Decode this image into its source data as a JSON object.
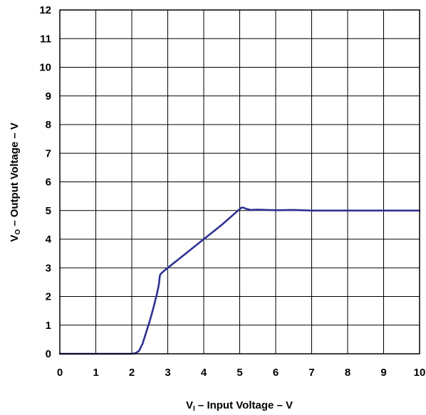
{
  "chart_data": {
    "type": "line",
    "title": "",
    "xlabel": {
      "main": "V",
      "sub": "I",
      "rest": " – Input Voltage – V"
    },
    "ylabel": {
      "main": "V",
      "sub": "O",
      "rest": " – Output Voltage – V"
    },
    "xlim": [
      0,
      10
    ],
    "ylim": [
      0,
      12
    ],
    "x_ticks": [
      "0",
      "1",
      "2",
      "3",
      "4",
      "5",
      "6",
      "7",
      "8",
      "9",
      "10"
    ],
    "y_ticks": [
      "0",
      "1",
      "2",
      "3",
      "4",
      "5",
      "6",
      "7",
      "8",
      "9",
      "10",
      "11",
      "12"
    ],
    "grid": true,
    "legend": "none",
    "line_color": "#2e3192",
    "series": [
      {
        "x": [
          0,
          2.0,
          2.1,
          2.2,
          2.3,
          2.4,
          2.5,
          2.6,
          2.7,
          2.75,
          2.78,
          2.8,
          2.9,
          3.0,
          3.5,
          4.0,
          4.5,
          5.0,
          5.05,
          5.1,
          5.2,
          5.3,
          5.5,
          6.0,
          6.5,
          7.0,
          8.0,
          9.0,
          10.0
        ],
        "y": [
          0,
          0,
          0.02,
          0.1,
          0.35,
          0.75,
          1.15,
          1.6,
          2.1,
          2.4,
          2.72,
          2.78,
          2.9,
          3.0,
          3.5,
          4.0,
          4.5,
          5.05,
          5.1,
          5.1,
          5.05,
          5.02,
          5.03,
          5.01,
          5.02,
          5.0,
          5.0,
          5.0,
          5.0
        ]
      }
    ]
  }
}
